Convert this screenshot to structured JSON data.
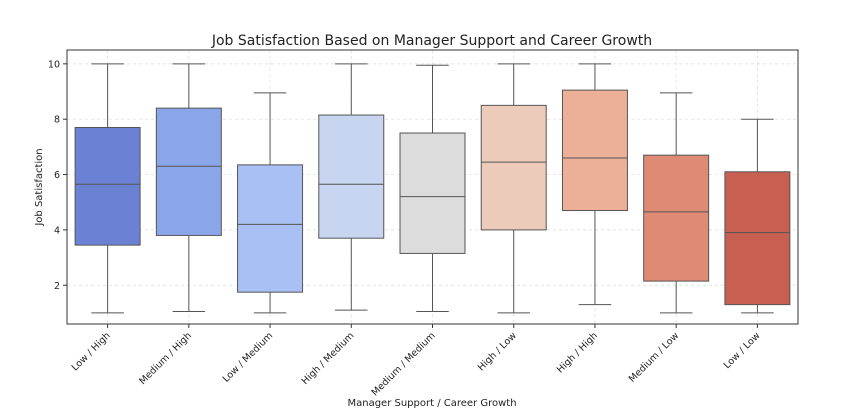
{
  "chart_data": {
    "type": "box",
    "title": "Job Satisfaction Based on Manager Support and Career Growth",
    "xlabel": "Manager Support / Career Growth",
    "ylabel": "Job Satisfaction",
    "ylim": [
      0.6,
      10.5
    ],
    "yticks": [
      2,
      4,
      6,
      8,
      10
    ],
    "grid": true,
    "categories": [
      "Low / High",
      "Medium / High",
      "Low / Medium",
      "High / Medium",
      "Medium / Medium",
      "High / Low",
      "High / High",
      "Medium / Low",
      "Low / Low"
    ],
    "boxes": [
      {
        "min": 1.0,
        "q1": 3.45,
        "median": 5.65,
        "q3": 7.7,
        "max": 10.0,
        "color": "#6b82d4"
      },
      {
        "min": 1.05,
        "q1": 3.8,
        "median": 6.3,
        "q3": 8.4,
        "max": 10.0,
        "color": "#8ba6e8"
      },
      {
        "min": 1.0,
        "q1": 1.75,
        "median": 4.2,
        "q3": 6.35,
        "max": 8.95,
        "color": "#a9c0f5"
      },
      {
        "min": 1.1,
        "q1": 3.7,
        "median": 5.65,
        "q3": 8.15,
        "max": 10.0,
        "color": "#c7d5f0"
      },
      {
        "min": 1.05,
        "q1": 3.15,
        "median": 5.2,
        "q3": 7.5,
        "max": 9.95,
        "color": "#dcdcdc"
      },
      {
        "min": 1.0,
        "q1": 4.0,
        "median": 6.45,
        "q3": 8.5,
        "max": 10.0,
        "color": "#eccbbb"
      },
      {
        "min": 1.3,
        "q1": 4.7,
        "median": 6.6,
        "q3": 9.05,
        "max": 10.0,
        "color": "#ebb097"
      },
      {
        "min": 1.0,
        "q1": 2.15,
        "median": 4.65,
        "q3": 6.7,
        "max": 8.95,
        "color": "#df8a74"
      },
      {
        "min": 1.0,
        "q1": 1.3,
        "median": 3.9,
        "q3": 6.1,
        "max": 8.0,
        "color": "#c86052"
      }
    ]
  }
}
